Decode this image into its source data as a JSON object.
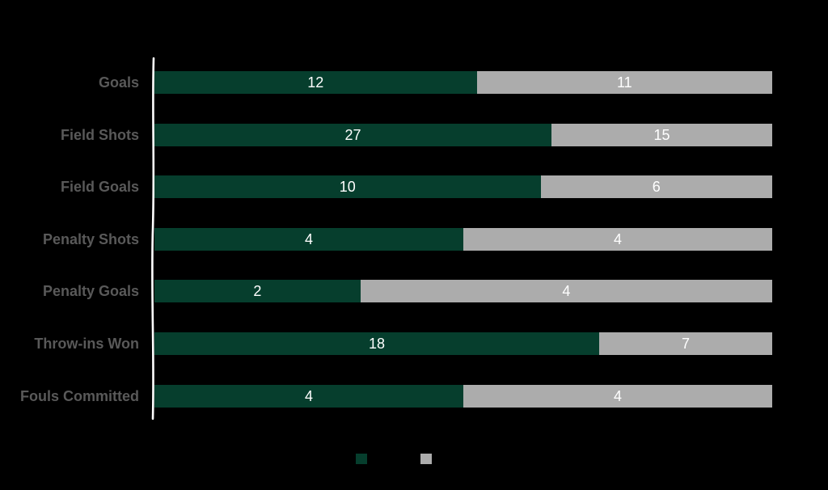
{
  "chart_data": {
    "type": "bar",
    "variant": "100%-stacked",
    "orientation": "horizontal",
    "title": "",
    "categories": [
      "Goals",
      "Field Shots",
      "Field Goals",
      "Penalty Shots",
      "Penalty Goals",
      "Throw-ins Won",
      "Fouls Committed"
    ],
    "series": [
      {
        "name": "",
        "color": "#063E2D",
        "values": [
          12,
          27,
          10,
          4,
          2,
          18,
          4
        ]
      },
      {
        "name": "",
        "color": "#ACACAC",
        "values": [
          11,
          15,
          6,
          4,
          4,
          7,
          4
        ]
      }
    ],
    "value_labels_shown": true,
    "value_label_color": "#FFFFFF",
    "category_label_color": "#595959",
    "axis_line_color": "#FFFFFF",
    "background_color": "#000000",
    "grid": false,
    "x_tick_labels": [],
    "legend": {
      "position": "bottom",
      "items": [
        {
          "label": "",
          "color": "#063E2D"
        },
        {
          "label": "",
          "color": "#ACACAC"
        }
      ]
    }
  }
}
